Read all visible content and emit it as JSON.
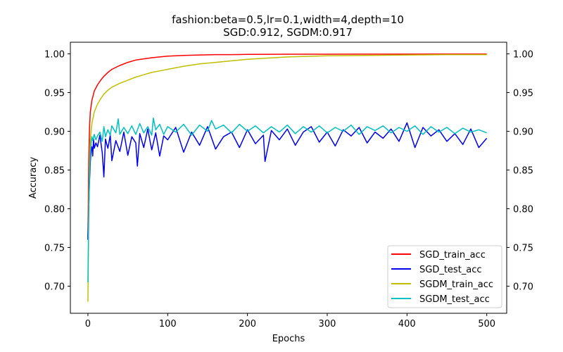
{
  "chart_data": {
    "type": "line",
    "title": "fashion:beta=0.5,lr=0.1,width=4,depth=10",
    "subtitle": "SGD:0.912, SGDM:0.917",
    "xlabel": "Epochs",
    "ylabel": "Accuracy",
    "xlim": [
      -22,
      525
    ],
    "ylim": [
      0.665,
      1.015
    ],
    "xticks": [
      0,
      100,
      200,
      300,
      400,
      500
    ],
    "yticks": [
      0.7,
      0.75,
      0.8,
      0.85,
      0.9,
      0.95,
      1.0
    ],
    "xtick_labels": [
      "0",
      "100",
      "200",
      "300",
      "400",
      "500"
    ],
    "ytick_labels": [
      "0.70",
      "0.75",
      "0.80",
      "0.85",
      "0.90",
      "0.95",
      "1.00"
    ],
    "right_yticks": true,
    "grid": false,
    "legend_position": "lower-right",
    "series": [
      {
        "name": "SGD_train_acc",
        "color": "#ff0000",
        "x": [
          0,
          1,
          2,
          3,
          5,
          8,
          12,
          16,
          20,
          25,
          30,
          40,
          50,
          60,
          70,
          80,
          90,
          100,
          120,
          140,
          160,
          180,
          200,
          250,
          300,
          350,
          400,
          450,
          500
        ],
        "values": [
          0.76,
          0.86,
          0.905,
          0.925,
          0.94,
          0.952,
          0.96,
          0.966,
          0.971,
          0.976,
          0.98,
          0.985,
          0.989,
          0.992,
          0.9935,
          0.995,
          0.996,
          0.997,
          0.998,
          0.9985,
          0.999,
          0.999,
          0.9993,
          0.9995,
          0.9996,
          0.9997,
          0.9997,
          0.9998,
          0.9998
        ]
      },
      {
        "name": "SGD_test_acc",
        "color": "#0000ee",
        "x": [
          0,
          1,
          2,
          3,
          4,
          5,
          6,
          7,
          8,
          10,
          12,
          15,
          18,
          20,
          22,
          25,
          28,
          30,
          35,
          40,
          45,
          50,
          55,
          60,
          62,
          65,
          70,
          75,
          80,
          85,
          90,
          95,
          100,
          110,
          120,
          130,
          140,
          150,
          160,
          170,
          180,
          190,
          200,
          210,
          220,
          222,
          230,
          240,
          250,
          260,
          270,
          280,
          290,
          300,
          310,
          320,
          330,
          340,
          350,
          360,
          370,
          380,
          390,
          400,
          410,
          420,
          430,
          440,
          450,
          460,
          470,
          480,
          490,
          500
        ],
        "values": [
          0.76,
          0.8,
          0.835,
          0.86,
          0.875,
          0.88,
          0.868,
          0.89,
          0.878,
          0.885,
          0.88,
          0.895,
          0.872,
          0.841,
          0.89,
          0.878,
          0.895,
          0.862,
          0.888,
          0.874,
          0.899,
          0.869,
          0.893,
          0.885,
          0.855,
          0.897,
          0.879,
          0.903,
          0.876,
          0.898,
          0.868,
          0.894,
          0.889,
          0.905,
          0.873,
          0.899,
          0.882,
          0.906,
          0.877,
          0.893,
          0.899,
          0.879,
          0.902,
          0.884,
          0.895,
          0.861,
          0.901,
          0.889,
          0.903,
          0.882,
          0.899,
          0.906,
          0.886,
          0.899,
          0.881,
          0.902,
          0.894,
          0.905,
          0.885,
          0.899,
          0.891,
          0.903,
          0.887,
          0.911,
          0.879,
          0.905,
          0.894,
          0.902,
          0.887,
          0.897,
          0.883,
          0.903,
          0.879,
          0.891
        ]
      },
      {
        "name": "SGDM_train_acc",
        "color": "#bfbf00",
        "x": [
          0,
          1,
          2,
          3,
          5,
          8,
          12,
          16,
          20,
          25,
          30,
          40,
          50,
          60,
          70,
          80,
          90,
          100,
          120,
          140,
          160,
          180,
          200,
          250,
          300,
          350,
          400,
          450,
          500
        ],
        "values": [
          0.68,
          0.8,
          0.86,
          0.89,
          0.91,
          0.925,
          0.935,
          0.942,
          0.948,
          0.953,
          0.957,
          0.962,
          0.966,
          0.97,
          0.973,
          0.976,
          0.978,
          0.98,
          0.984,
          0.987,
          0.989,
          0.991,
          0.993,
          0.996,
          0.9975,
          0.998,
          0.9985,
          0.999,
          0.999
        ]
      },
      {
        "name": "SGDM_test_acc",
        "color": "#00bfbf",
        "x": [
          0,
          1,
          2,
          3,
          4,
          5,
          6,
          8,
          10,
          12,
          15,
          18,
          20,
          22,
          25,
          28,
          30,
          35,
          38,
          40,
          45,
          50,
          55,
          60,
          65,
          70,
          75,
          80,
          82,
          85,
          90,
          95,
          100,
          110,
          120,
          130,
          140,
          150,
          155,
          160,
          170,
          180,
          190,
          200,
          210,
          220,
          230,
          240,
          250,
          260,
          270,
          280,
          290,
          300,
          310,
          320,
          330,
          340,
          350,
          360,
          370,
          380,
          390,
          400,
          410,
          420,
          430,
          440,
          450,
          460,
          470,
          480,
          490,
          500
        ],
        "values": [
          0.705,
          0.79,
          0.845,
          0.87,
          0.885,
          0.893,
          0.888,
          0.896,
          0.889,
          0.894,
          0.899,
          0.887,
          0.906,
          0.893,
          0.902,
          0.895,
          0.907,
          0.898,
          0.916,
          0.896,
          0.905,
          0.897,
          0.907,
          0.896,
          0.91,
          0.898,
          0.906,
          0.895,
          0.917,
          0.902,
          0.909,
          0.896,
          0.906,
          0.899,
          0.909,
          0.895,
          0.908,
          0.9,
          0.914,
          0.903,
          0.908,
          0.898,
          0.909,
          0.9,
          0.907,
          0.898,
          0.906,
          0.899,
          0.908,
          0.897,
          0.906,
          0.899,
          0.907,
          0.898,
          0.905,
          0.9,
          0.908,
          0.896,
          0.906,
          0.901,
          0.907,
          0.898,
          0.905,
          0.9,
          0.907,
          0.896,
          0.906,
          0.899,
          0.905,
          0.897,
          0.904,
          0.899,
          0.902,
          0.898
        ]
      }
    ]
  }
}
